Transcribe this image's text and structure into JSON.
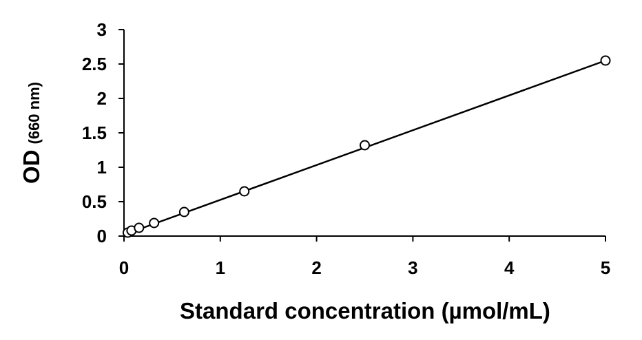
{
  "chart_data": {
    "type": "scatter",
    "title": "",
    "xlabel": "Standard concentration (µmol/mL)",
    "ylabel": "OD",
    "ylabel_unit": "(660 nm)",
    "xlim": [
      0,
      5
    ],
    "ylim": [
      0,
      3
    ],
    "xticks": [
      "0",
      "1",
      "2",
      "3",
      "4",
      "5"
    ],
    "yticks": [
      "0",
      "0.5",
      "1",
      "1.5",
      "2",
      "2.5",
      "3"
    ],
    "grid": false,
    "legend": "none",
    "marker": "open-circle",
    "series": [
      {
        "x": [
          0.039,
          0.078,
          0.156,
          0.3125,
          0.625,
          1.25,
          2.5,
          5
        ],
        "y": [
          0.05,
          0.08,
          0.12,
          0.19,
          0.35,
          0.65,
          1.32,
          2.55
        ]
      }
    ],
    "trendline": {
      "type": "linear",
      "x": [
        0,
        5
      ],
      "y": [
        0.02,
        2.55
      ]
    },
    "colors": {
      "marker": "#000000",
      "line": "#000000"
    }
  }
}
